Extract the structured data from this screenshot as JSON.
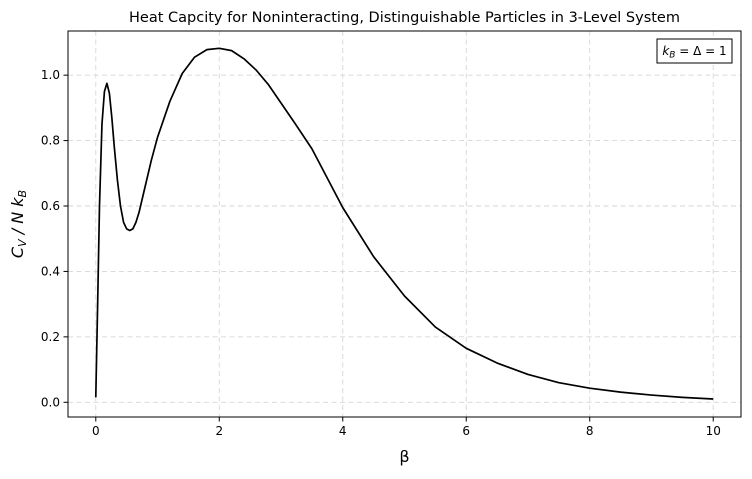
{
  "chart_data": {
    "type": "line",
    "title": "Heat Capcity for Noninteracting, Distinguishable Particles in 3-Level System",
    "xlabel": "β",
    "ylabel_parts": {
      "c": "C",
      "v": "V",
      "mid": " / N k",
      "b": "B"
    },
    "annotation_parts": {
      "k": "k",
      "b": "B",
      "rest": " = Δ = 1"
    },
    "xlim": [
      -0.45,
      10.45
    ],
    "ylim": [
      -0.045,
      1.135
    ],
    "x_ticks": [
      0,
      2,
      4,
      6,
      8,
      10
    ],
    "x_tick_labels": [
      "0",
      "2",
      "4",
      "6",
      "8",
      "10"
    ],
    "y_ticks": [
      0.0,
      0.2,
      0.4,
      0.6,
      0.8,
      1.0
    ],
    "y_tick_labels": [
      "0.0",
      "0.2",
      "0.4",
      "0.6",
      "0.8",
      "1.0"
    ],
    "grid": true,
    "annotation_position": "top-right",
    "series": [
      {
        "color": "#000000",
        "x": [
          0.0,
          0.03,
          0.06,
          0.1,
          0.14,
          0.18,
          0.22,
          0.26,
          0.3,
          0.35,
          0.4,
          0.45,
          0.5,
          0.55,
          0.6,
          0.65,
          0.7,
          0.8,
          0.9,
          1.0,
          1.2,
          1.4,
          1.6,
          1.8,
          2.0,
          2.2,
          2.4,
          2.6,
          2.8,
          3.0,
          3.2,
          3.5,
          4.0,
          4.5,
          5.0,
          5.5,
          6.0,
          6.5,
          7.0,
          7.5,
          8.0,
          8.5,
          9.0,
          9.5,
          10.0
        ],
        "y": [
          0.015,
          0.3,
          0.6,
          0.85,
          0.95,
          0.975,
          0.945,
          0.87,
          0.78,
          0.68,
          0.6,
          0.55,
          0.53,
          0.525,
          0.53,
          0.55,
          0.58,
          0.66,
          0.74,
          0.81,
          0.92,
          1.005,
          1.055,
          1.078,
          1.082,
          1.075,
          1.05,
          1.015,
          0.97,
          0.915,
          0.86,
          0.775,
          0.595,
          0.445,
          0.325,
          0.23,
          0.165,
          0.12,
          0.085,
          0.06,
          0.043,
          0.031,
          0.022,
          0.015,
          0.01
        ]
      }
    ]
  }
}
